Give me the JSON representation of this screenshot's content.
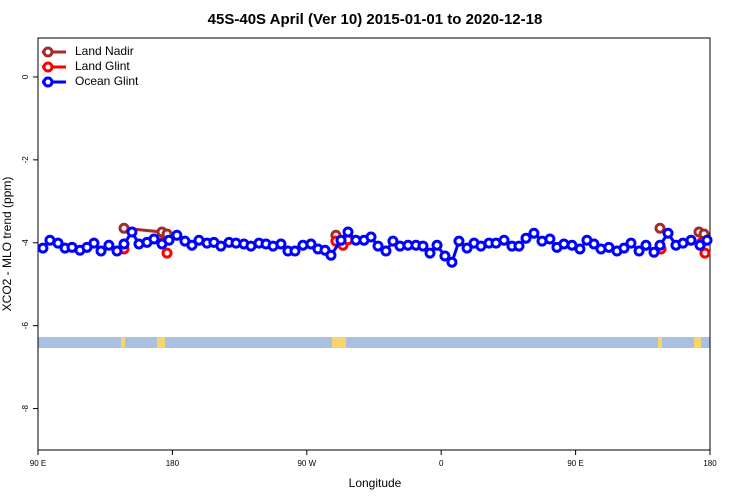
{
  "chart_data": {
    "type": "line",
    "title": "45S-40S April (Ver 10)   2015-01-01 to 2020-12-18",
    "xlabel": "Longitude",
    "ylabel": "XCO2 - MLO trend (ppm)",
    "xlim": [
      90,
      540
    ],
    "xticks": [
      {
        "value": 90,
        "label": "90 E"
      },
      180,
      {
        "value": 270,
        "label": "90 W"
      },
      {
        "value": 360,
        "label": "0"
      },
      {
        "value": 450,
        "label": "90 E"
      },
      {
        "value": 540,
        "label": "180"
      }
    ],
    "ylim": [
      -9.0,
      0.94
    ],
    "yticks": [
      0,
      -2,
      -4,
      -6,
      -8
    ],
    "legend": "top-left",
    "series": [
      {
        "name": "Land Nadir",
        "color": "#a52a2a",
        "x": [
          147.6,
          173.0,
          176.4,
          null,
          289.5,
          null,
          506.5,
          null,
          532.6,
          536.0
        ],
        "values": [
          -3.65,
          -3.74,
          -3.79,
          null,
          -3.82,
          null,
          -3.65,
          null,
          -3.74,
          -3.79
        ]
      },
      {
        "name": "Land Glint",
        "color": "#ff0000",
        "x": [
          147.6,
          null,
          173.0,
          176.4,
          null,
          289.5,
          294.2,
          297.6,
          null,
          507.2,
          null,
          534.6,
          536.6
        ],
        "values": [
          -4.15,
          null,
          -4.0,
          -4.25,
          null,
          -3.96,
          -4.06,
          -3.93,
          null,
          -4.15,
          null,
          -3.99,
          -4.25
        ]
      },
      {
        "name": "Ocean Glint",
        "color": "#0000ff",
        "x": [
          93.3,
          98.0,
          103.4,
          108.1,
          112.8,
          118.1,
          122.8,
          127.5,
          132.2,
          137.5,
          142.9,
          147.6,
          152.9,
          157.6,
          163.0,
          167.7,
          173.0,
          177.7,
          183.0,
          188.4,
          193.1,
          197.8,
          203.2,
          207.8,
          212.5,
          217.9,
          222.6,
          227.9,
          232.6,
          238.0,
          242.7,
          247.4,
          252.7,
          257.4,
          262.1,
          267.4,
          272.8,
          277.5,
          282.2,
          286.2,
          292.9,
          297.6,
          302.9,
          308.3,
          313.0,
          317.7,
          323.0,
          327.7,
          332.4,
          337.8,
          343.1,
          347.8,
          352.5,
          357.2,
          362.5,
          367.2,
          371.9,
          377.3,
          382.0,
          386.6,
          392.0,
          396.7,
          402.1,
          407.4,
          412.1,
          416.8,
          422.1,
          427.5,
          432.8,
          437.5,
          442.2,
          447.6,
          452.9,
          457.6,
          462.3,
          467.0,
          472.3,
          477.7,
          482.4,
          487.1,
          492.5,
          497.1,
          502.5,
          506.5,
          511.9,
          517.2,
          521.9,
          527.3,
          533.3,
          538.0
        ],
        "values": [
          -4.13,
          -3.94,
          -4.01,
          -4.13,
          -4.11,
          -4.18,
          -4.11,
          -4.01,
          -4.2,
          -4.06,
          -4.2,
          -4.03,
          -3.74,
          -4.03,
          -3.99,
          -3.91,
          -4.03,
          -3.94,
          -3.82,
          -3.96,
          -4.06,
          -3.94,
          -4.01,
          -3.99,
          -4.08,
          -3.99,
          -4.01,
          -4.03,
          -4.08,
          -4.01,
          -4.03,
          -4.08,
          -4.03,
          -4.2,
          -4.2,
          -4.06,
          -4.03,
          -4.15,
          -4.18,
          -4.3,
          -3.94,
          -3.74,
          -3.94,
          -3.94,
          -3.86,
          -4.08,
          -4.2,
          -3.96,
          -4.08,
          -4.06,
          -4.06,
          -4.08,
          -4.25,
          -4.06,
          -4.32,
          -4.47,
          -3.96,
          -4.13,
          -4.01,
          -4.08,
          -4.01,
          -4.01,
          -3.94,
          -4.08,
          -4.08,
          -3.89,
          -3.77,
          -3.96,
          -3.91,
          -4.11,
          -4.03,
          -4.06,
          -4.15,
          -3.94,
          -4.03,
          -4.15,
          -4.11,
          -4.2,
          -4.13,
          -4.01,
          -4.2,
          -4.06,
          -4.23,
          -4.06,
          -3.77,
          -4.06,
          -4.01,
          -3.94,
          -4.06,
          -3.94
        ]
      }
    ]
  }
}
